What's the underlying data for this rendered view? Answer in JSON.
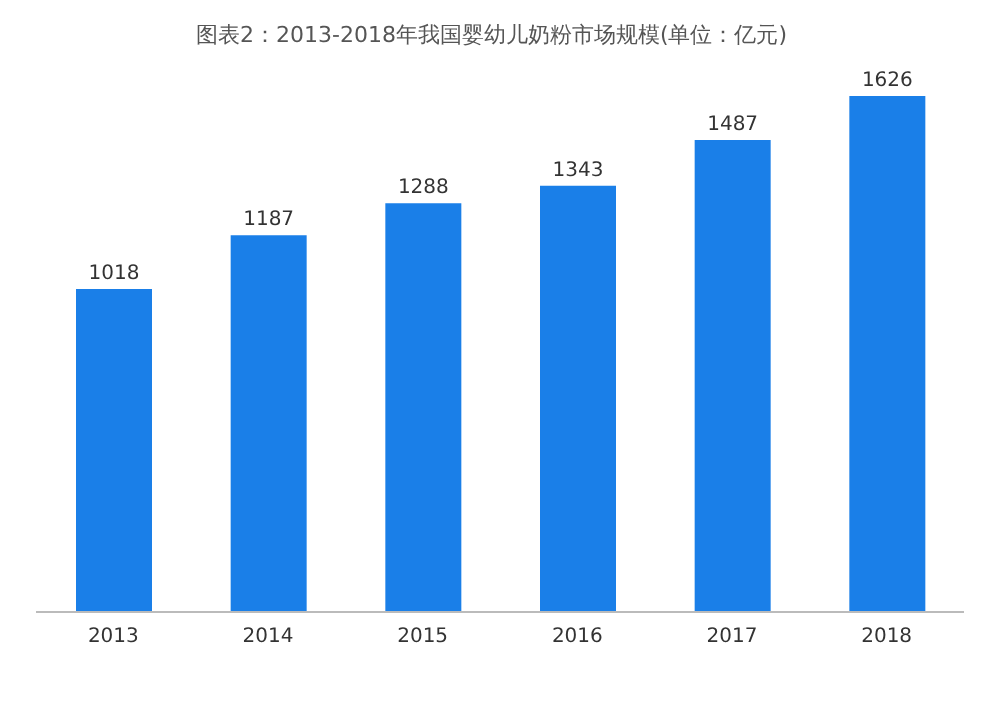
{
  "chart_data": {
    "type": "bar",
    "title": "图表2：2013-2018年我国婴幼儿奶粉市场规模(单位：亿元)",
    "categories": [
      "2013",
      "2014",
      "2015",
      "2016",
      "2017",
      "2018"
    ],
    "values": [
      1018,
      1187,
      1288,
      1343,
      1487,
      1626
    ],
    "color": "#1a7fe8",
    "data_labels": true,
    "grid": false,
    "legend": false
  }
}
